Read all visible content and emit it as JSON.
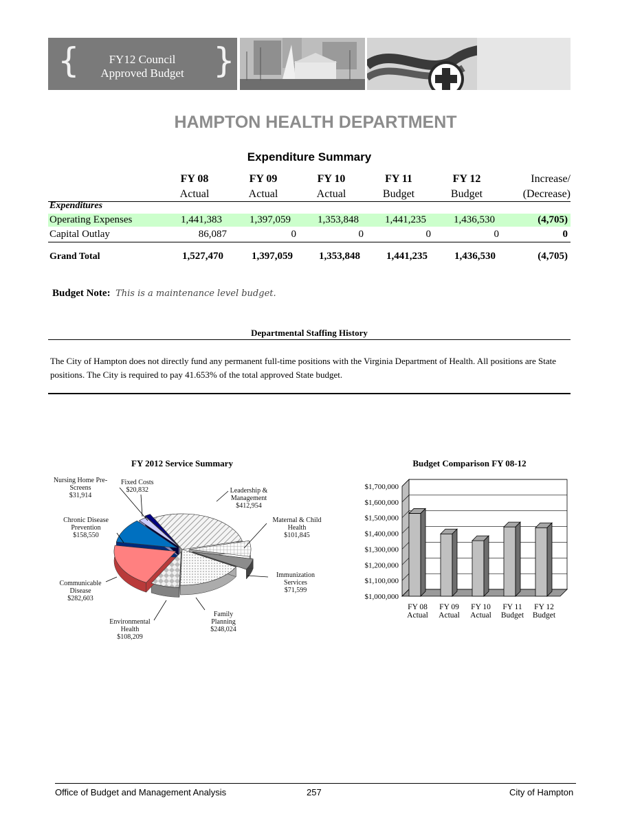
{
  "banner": {
    "title_line1": "FY12 Council",
    "title_line2": "Approved Budget"
  },
  "department_title": "HAMPTON HEALTH DEPARTMENT",
  "section_title": "Expenditure Summary",
  "table": {
    "columns": [
      {
        "line1": "FY 08",
        "line2": "Actual"
      },
      {
        "line1": "FY 09",
        "line2": "Actual"
      },
      {
        "line1": "FY 10",
        "line2": "Actual"
      },
      {
        "line1": "FY 11",
        "line2": "Budget"
      },
      {
        "line1": "FY 12",
        "line2": "Budget"
      },
      {
        "line1": "Increase/",
        "line2": "(Decrease)"
      }
    ],
    "group_label": "Expenditures",
    "rows": [
      {
        "label": "Operating Expenses",
        "values": [
          "1,441,383",
          "1,397,059",
          "1,353,848",
          "1,441,235",
          "1,436,530",
          "(4,705)"
        ]
      },
      {
        "label": "Capital Outlay",
        "values": [
          "86,087",
          "0",
          "0",
          "0",
          "0",
          "0"
        ]
      }
    ],
    "total": {
      "label": "Grand Total",
      "values": [
        "1,527,470",
        "1,397,059",
        "1,353,848",
        "1,441,235",
        "1,436,530",
        "(4,705)"
      ]
    }
  },
  "budget_note": {
    "label": "Budget Note:",
    "text": "This is a maintenance level budget."
  },
  "staffing": {
    "title": "Departmental Staffing History",
    "paragraph": "The City of Hampton does not directly fund any permanent full-time positions with the Virginia Department of Health.  All positions are State positions.  The City is required to pay 41.653% of the total approved State budget."
  },
  "chart_data": [
    {
      "type": "pie",
      "title": "FY 2012 Service Summary",
      "labels": [
        "Leadership & Management",
        "Maternal & Child Health",
        "Immunization Services",
        "Family Planning",
        "Environmental Health",
        "Communicable Disease",
        "Chronic Disease Prevention",
        "Nursing Home Pre-Screens",
        "Fixed Costs"
      ],
      "values": [
        412954,
        101845,
        71599,
        248024,
        108209,
        282603,
        158550,
        31914,
        20832
      ],
      "value_labels": [
        "$412,954",
        "$101,845",
        "$71,599",
        "$248,024",
        "$108,209",
        "$282,603",
        "$158,550",
        "$31,914",
        "$20,832"
      ],
      "colors": [
        "#e6e6e6",
        "#ececec",
        "#8a8a8a",
        "#f2f2f2",
        "#c8c8c8",
        "#ff8080",
        "#0070c0",
        "#ccccff",
        "#000080"
      ]
    },
    {
      "type": "bar",
      "title": "Budget Comparison FY 08-12",
      "categories": [
        "FY 08 Actual",
        "FY 09 Actual",
        "FY 10 Actual",
        "FY 11 Budget",
        "FY 12 Budget"
      ],
      "category_line1": [
        "FY 08",
        "FY 09",
        "FY 10",
        "FY 11",
        "FY 12"
      ],
      "category_line2": [
        "Actual",
        "Actual",
        "Actual",
        "Budget",
        "Budget"
      ],
      "values": [
        1527470,
        1397059,
        1353848,
        1441235,
        1436530
      ],
      "ylim": [
        1000000,
        1700000
      ],
      "yticks": [
        "$1,000,000",
        "$1,100,000",
        "$1,200,000",
        "$1,300,000",
        "$1,400,000",
        "$1,500,000",
        "$1,600,000",
        "$1,700,000"
      ],
      "grid": true
    }
  ],
  "footer": {
    "left": "Office of Budget and Management Analysis",
    "center": "257",
    "right": "City of Hampton"
  }
}
